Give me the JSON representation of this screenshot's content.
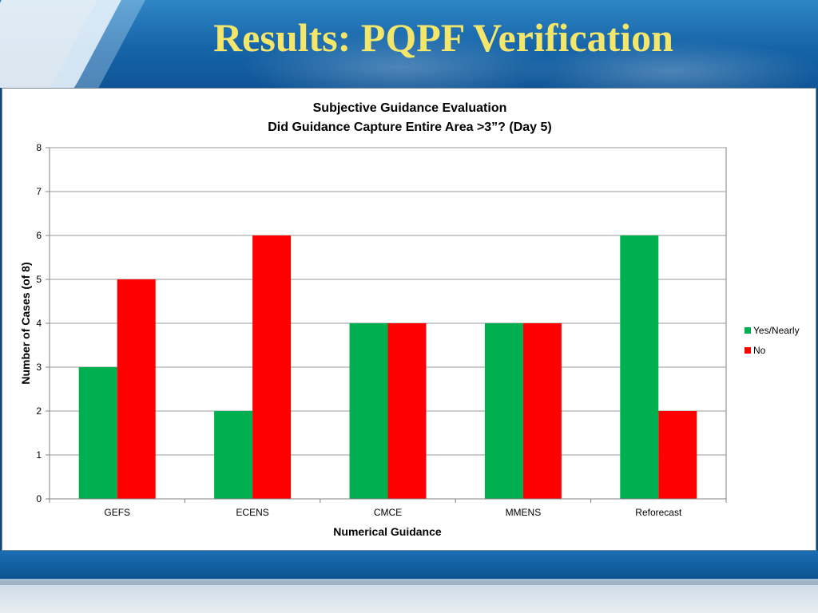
{
  "slide": {
    "title": "Results: PQPF Verification"
  },
  "chart_data": {
    "type": "bar",
    "title": "Subjective Guidance Evaluation",
    "subtitle": "Did Guidance Capture Entire Area >3”? (Day 5)",
    "xlabel": "Numerical Guidance",
    "ylabel": "Number of Cases (of 8)",
    "categories": [
      "GEFS",
      "ECENS",
      "CMCE",
      "MMENS",
      "Reforecast"
    ],
    "series": [
      {
        "name": "Yes/Nearly",
        "values": [
          3,
          2,
          4,
          4,
          6
        ],
        "color": "#00b050"
      },
      {
        "name": "No",
        "values": [
          5,
          6,
          4,
          4,
          2
        ],
        "color": "#ff0000"
      }
    ],
    "ylim": [
      0,
      8
    ],
    "yticks": [
      0,
      1,
      2,
      3,
      4,
      5,
      6,
      7,
      8
    ],
    "grid": true,
    "legend_position": "right"
  }
}
